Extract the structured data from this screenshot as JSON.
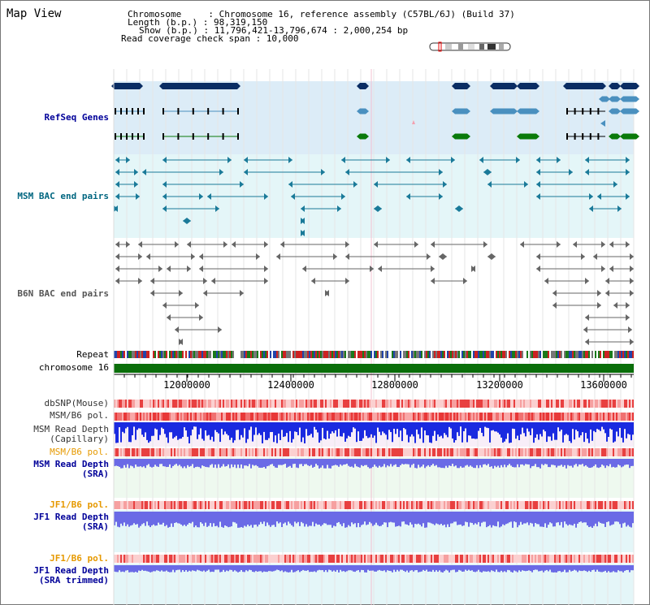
{
  "title": "Map View",
  "header": {
    "chromosome_line": "Chromosome     : Chromosome 16, reference assembly (C57BL/6J) (Build 37)",
    "length_line": "Length (b.p.) : 98,319,150",
    "show_line": "Show (b.p.) : 11,796,421-13,796,674 : 2,000,254 bp",
    "span_line": "Read coverage check span : 10,000"
  },
  "tracks": {
    "refseq": "RefSeq Genes",
    "msm_bac": "MSM BAC end pairs",
    "b6n_bac": "B6N BAC end pairs",
    "repeat": "Repeat",
    "chromosome": "chromosome 16",
    "dbsnp": "dbSNP(Mouse)",
    "msm_b6_pol_1": "MSM/B6 pol.",
    "msm_read_depth_cap_1": "MSM Read Depth",
    "msm_read_depth_cap_2": "(Capillary)",
    "msm_b6_pol_2": "MSM/B6 pol.",
    "msm_read_depth_sra_1": "MSM Read Depth",
    "msm_read_depth_sra_2": "(SRA)",
    "jf1_b6_pol_1": "JF1/B6 pol.",
    "jf1_read_depth_sra_1": "JF1 Read Depth",
    "jf1_read_depth_sra_2": "(SRA)",
    "jf1_b6_pol_2": "JF1/B6 pol.",
    "jf1_read_depth_trim_1": "JF1 Read Depth",
    "jf1_read_depth_trim_2": "(SRA trimmed)"
  },
  "axis": {
    "ticks": [
      "12000000",
      "12400000",
      "12800000",
      "13200000",
      "13600000"
    ]
  },
  "colors": {
    "refseq_label": "#000099",
    "msm_label": "#006680",
    "b6n_label": "#555555",
    "pol_orange": "#e69900",
    "depth_blue": "#000099",
    "dark_gene": "#0a2d63",
    "light_gene": "#4a90bf",
    "green_gene": "#0a7a0a",
    "chromosome_bar": "#0a6e0a"
  }
}
